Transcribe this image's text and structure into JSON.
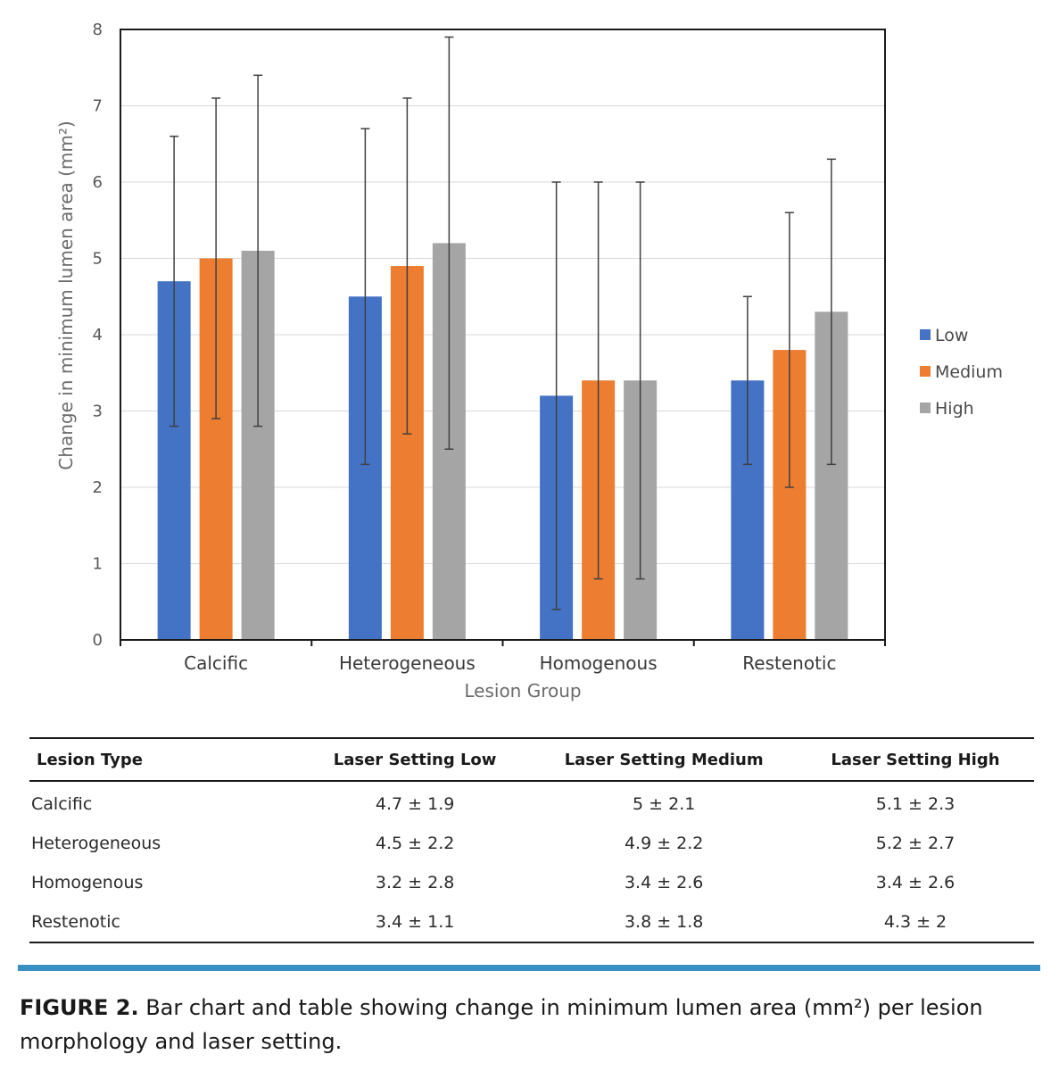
{
  "chart_data": {
    "type": "bar",
    "title": "",
    "xlabel": "Lesion Group",
    "ylabel": "Change in minimum lumen area (mm²)",
    "ylim": [
      0,
      8
    ],
    "yticks": [
      0,
      1,
      2,
      3,
      4,
      5,
      6,
      7,
      8
    ],
    "grid": true,
    "legend_position": "right",
    "categories": [
      "Calcific",
      "Heterogeneous",
      "Homogenous",
      "Restenotic"
    ],
    "series": [
      {
        "name": "Low",
        "color": "#4472c4",
        "values": [
          4.7,
          4.5,
          3.2,
          3.4
        ],
        "error": [
          1.9,
          2.2,
          2.8,
          1.1
        ]
      },
      {
        "name": "Medium",
        "color": "#ed7d31",
        "values": [
          5.0,
          4.9,
          3.4,
          3.8
        ],
        "error": [
          2.1,
          2.2,
          2.6,
          1.8
        ]
      },
      {
        "name": "High",
        "color": "#a5a5a5",
        "values": [
          5.1,
          5.2,
          3.4,
          4.3
        ],
        "error": [
          2.3,
          2.7,
          2.6,
          2.0
        ]
      }
    ]
  },
  "table": {
    "headers": [
      "Lesion Type",
      "Laser Setting Low",
      "Laser Setting Medium",
      "Laser Setting High"
    ],
    "rows": [
      [
        "Calcific",
        "4.7 ± 1.9",
        "5 ± 2.1",
        "5.1 ± 2.3"
      ],
      [
        "Heterogeneous",
        "4.5 ± 2.2",
        "4.9 ± 2.2",
        "5.2 ± 2.7"
      ],
      [
        "Homogenous",
        "3.2 ± 2.8",
        "3.4 ± 2.6",
        "3.4 ± 2.6"
      ],
      [
        "Restenotic",
        "3.4 ± 1.1",
        "3.8 ± 1.8",
        "4.3 ± 2"
      ]
    ]
  },
  "caption": {
    "label": "FIGURE 2.",
    "text": "Bar chart and table showing change in minimum lumen area (mm²) per lesion morphology and laser setting."
  },
  "colors": {
    "divider": "#3a8fc4"
  }
}
